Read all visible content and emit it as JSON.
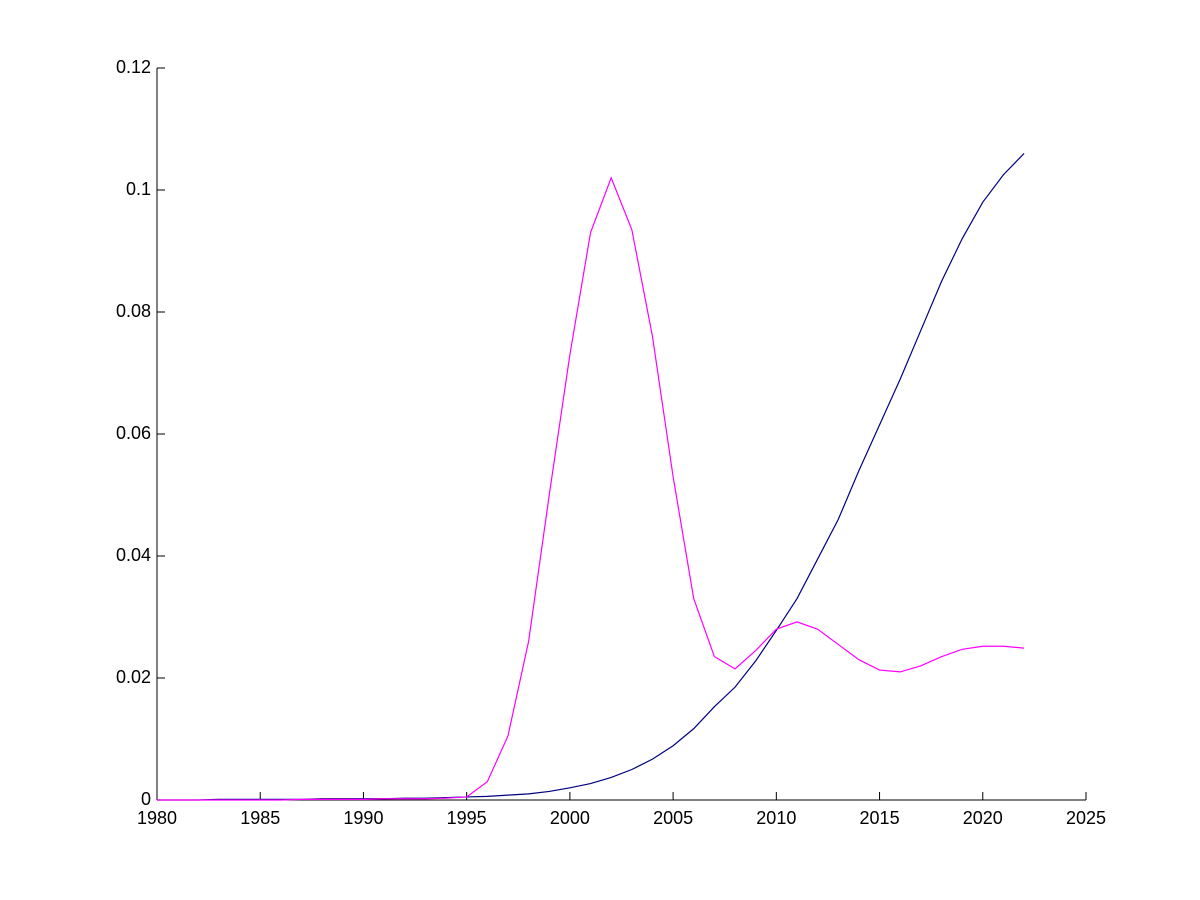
{
  "chart_data": {
    "type": "line",
    "x": [
      1980,
      1981,
      1982,
      1983,
      1984,
      1985,
      1986,
      1987,
      1988,
      1989,
      1990,
      1991,
      1992,
      1993,
      1994,
      1995,
      1996,
      1997,
      1998,
      1999,
      2000,
      2001,
      2002,
      2003,
      2004,
      2005,
      2006,
      2007,
      2008,
      2009,
      2010,
      2011,
      2012,
      2013,
      2014,
      2015,
      2016,
      2017,
      2018,
      2019,
      2020,
      2021,
      2022
    ],
    "series": [
      {
        "color": "#000080",
        "values": [
          0,
          0,
          0,
          0.0001,
          0.0001,
          0.0001,
          0.0001,
          0.0001,
          0.0002,
          0.0002,
          0.0002,
          0.0002,
          0.0003,
          0.0003,
          0.0004,
          0.0005,
          0.0006,
          0.0008,
          0.001,
          0.0014,
          0.002,
          0.0027,
          0.0037,
          0.005,
          0.0067,
          0.0089,
          0.0117,
          0.0153,
          0.0185,
          0.0228,
          0.0278,
          0.033,
          0.0395,
          0.046,
          0.054,
          0.0615,
          0.069,
          0.077,
          0.085,
          0.092,
          0.098,
          0.1025,
          0.106
        ]
      },
      {
        "color": "#ff00ff",
        "values": [
          0,
          0,
          0,
          0,
          0,
          0,
          0,
          0.0001,
          0.0001,
          0.0001,
          0.0001,
          0.0002,
          0.0002,
          0.0002,
          0.0003,
          0.0005,
          0.003,
          0.0105,
          0.026,
          0.05,
          0.073,
          0.093,
          0.102,
          0.0935,
          0.076,
          0.053,
          0.033,
          0.0235,
          0.0215,
          0.0245,
          0.028,
          0.0292,
          0.028,
          0.0255,
          0.023,
          0.0213,
          0.021,
          0.022,
          0.0235,
          0.0247,
          0.0252,
          0.0252,
          0.0249
        ]
      }
    ],
    "xlim": [
      1980,
      2025
    ],
    "xticks": [
      1980,
      1985,
      1990,
      1995,
      2000,
      2005,
      2010,
      2015,
      2020,
      2025
    ],
    "ylim": [
      0,
      0.12
    ],
    "yticks": [
      0,
      0.02,
      0.04,
      0.06,
      0.08,
      0.1,
      0.12
    ]
  }
}
